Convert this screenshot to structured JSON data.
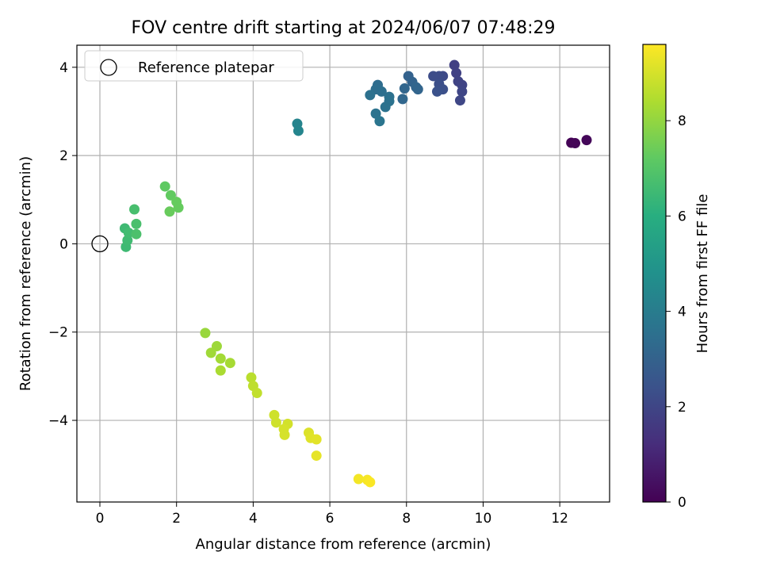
{
  "chart_data": {
    "type": "scatter",
    "title": "FOV centre drift starting at 2024/06/07 07:48:29",
    "xlabel": "Angular distance from reference (arcmin)",
    "ylabel": "Rotation from reference (arcmin)",
    "xlim": [
      -0.6,
      13.3
    ],
    "ylim": [
      -5.85,
      4.5
    ],
    "xticks": [
      0,
      2,
      4,
      6,
      8,
      10,
      12
    ],
    "yticks": [
      -4,
      -2,
      0,
      2,
      4
    ],
    "xtick_labels": [
      "0",
      "2",
      "4",
      "6",
      "8",
      "10",
      "12"
    ],
    "ytick_labels": [
      "−4",
      "−2",
      "0",
      "2",
      "4"
    ],
    "grid": true,
    "legend": {
      "placement": "top-left",
      "entries": [
        {
          "label": "Reference platepar",
          "marker": "open-circle"
        }
      ]
    },
    "reference_point": {
      "x": 0,
      "y": 0,
      "name": "Reference platepar"
    },
    "colorbar": {
      "label": "Hours from first FF file",
      "colormap": "viridis",
      "range": [
        0,
        9.6
      ],
      "ticks": [
        0,
        2,
        4,
        6,
        8
      ],
      "tick_labels": [
        "0",
        "2",
        "4",
        "6",
        "8"
      ]
    },
    "points": [
      {
        "x": 12.3,
        "y": 2.29,
        "c": 0.05
      },
      {
        "x": 12.4,
        "y": 2.28,
        "c": 0.1
      },
      {
        "x": 12.7,
        "y": 2.35,
        "c": 0.15
      },
      {
        "x": 9.25,
        "y": 4.05,
        "c": 1.8
      },
      {
        "x": 9.3,
        "y": 3.87,
        "c": 1.85
      },
      {
        "x": 9.35,
        "y": 3.68,
        "c": 1.9
      },
      {
        "x": 9.45,
        "y": 3.6,
        "c": 1.95
      },
      {
        "x": 9.45,
        "y": 3.45,
        "c": 2.0
      },
      {
        "x": 9.4,
        "y": 3.25,
        "c": 2.05
      },
      {
        "x": 8.95,
        "y": 3.8,
        "c": 2.15
      },
      {
        "x": 8.85,
        "y": 3.8,
        "c": 2.2
      },
      {
        "x": 8.7,
        "y": 3.8,
        "c": 2.25
      },
      {
        "x": 8.85,
        "y": 3.62,
        "c": 2.3
      },
      {
        "x": 8.95,
        "y": 3.5,
        "c": 2.35
      },
      {
        "x": 8.8,
        "y": 3.45,
        "c": 2.4
      },
      {
        "x": 8.05,
        "y": 3.8,
        "c": 3.0
      },
      {
        "x": 8.15,
        "y": 3.67,
        "c": 3.05
      },
      {
        "x": 8.25,
        "y": 3.55,
        "c": 3.1
      },
      {
        "x": 8.3,
        "y": 3.5,
        "c": 3.1
      },
      {
        "x": 7.95,
        "y": 3.52,
        "c": 3.15
      },
      {
        "x": 7.9,
        "y": 3.28,
        "c": 3.2
      },
      {
        "x": 7.25,
        "y": 3.6,
        "c": 3.4
      },
      {
        "x": 7.2,
        "y": 3.5,
        "c": 3.45
      },
      {
        "x": 7.35,
        "y": 3.45,
        "c": 3.5
      },
      {
        "x": 7.05,
        "y": 3.37,
        "c": 3.55
      },
      {
        "x": 7.55,
        "y": 3.33,
        "c": 3.55
      },
      {
        "x": 7.55,
        "y": 3.23,
        "c": 3.6
      },
      {
        "x": 7.45,
        "y": 3.1,
        "c": 3.6
      },
      {
        "x": 7.2,
        "y": 2.95,
        "c": 3.65
      },
      {
        "x": 7.3,
        "y": 2.78,
        "c": 3.7
      },
      {
        "x": 5.15,
        "y": 2.72,
        "c": 4.3
      },
      {
        "x": 5.18,
        "y": 2.56,
        "c": 4.35
      },
      {
        "x": 0.65,
        "y": 0.35,
        "c": 6.5
      },
      {
        "x": 0.68,
        "y": -0.07,
        "c": 6.5
      },
      {
        "x": 0.72,
        "y": 0.08,
        "c": 6.55
      },
      {
        "x": 0.75,
        "y": 0.25,
        "c": 6.6
      },
      {
        "x": 0.9,
        "y": 0.78,
        "c": 6.7
      },
      {
        "x": 0.95,
        "y": 0.45,
        "c": 6.75
      },
      {
        "x": 0.95,
        "y": 0.22,
        "c": 6.8
      },
      {
        "x": 1.7,
        "y": 1.3,
        "c": 7.2
      },
      {
        "x": 1.85,
        "y": 1.1,
        "c": 7.25
      },
      {
        "x": 2.0,
        "y": 0.95,
        "c": 7.3
      },
      {
        "x": 2.05,
        "y": 0.82,
        "c": 7.3
      },
      {
        "x": 1.82,
        "y": 0.73,
        "c": 7.35
      },
      {
        "x": 2.75,
        "y": -2.02,
        "c": 8.1
      },
      {
        "x": 3.05,
        "y": -2.32,
        "c": 8.15
      },
      {
        "x": 2.9,
        "y": -2.47,
        "c": 8.2
      },
      {
        "x": 3.15,
        "y": -2.6,
        "c": 8.25
      },
      {
        "x": 3.4,
        "y": -2.7,
        "c": 8.3
      },
      {
        "x": 3.15,
        "y": -2.87,
        "c": 8.35
      },
      {
        "x": 3.95,
        "y": -3.03,
        "c": 8.6
      },
      {
        "x": 4.0,
        "y": -3.22,
        "c": 8.65
      },
      {
        "x": 4.1,
        "y": -3.38,
        "c": 8.7
      },
      {
        "x": 4.55,
        "y": -3.88,
        "c": 8.9
      },
      {
        "x": 4.6,
        "y": -4.05,
        "c": 8.9
      },
      {
        "x": 4.9,
        "y": -4.08,
        "c": 8.95
      },
      {
        "x": 4.8,
        "y": -4.2,
        "c": 9.0
      },
      {
        "x": 4.82,
        "y": -4.33,
        "c": 9.0
      },
      {
        "x": 5.45,
        "y": -4.28,
        "c": 9.1
      },
      {
        "x": 5.5,
        "y": -4.4,
        "c": 9.15
      },
      {
        "x": 5.65,
        "y": -4.43,
        "c": 9.2
      },
      {
        "x": 5.65,
        "y": -4.8,
        "c": 9.25
      },
      {
        "x": 6.75,
        "y": -5.33,
        "c": 9.45
      },
      {
        "x": 6.98,
        "y": -5.35,
        "c": 9.5
      },
      {
        "x": 7.05,
        "y": -5.4,
        "c": 9.55
      }
    ]
  }
}
